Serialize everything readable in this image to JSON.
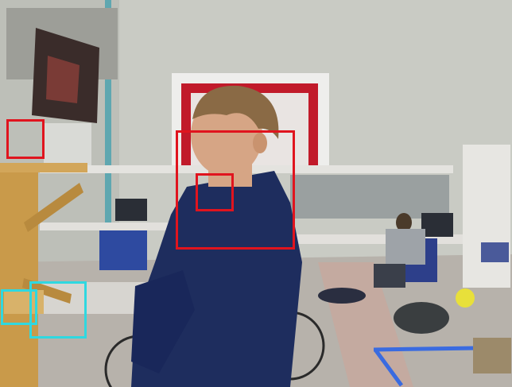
{
  "scene": {
    "description_icon": "lab-scene-photo",
    "colors": {
      "wall": "#c9cbc4",
      "floor": "#b9b4ae",
      "hoodie": "#1e2d5e",
      "hair": "#8a6a45",
      "skin": "#d6a585",
      "window_frame": "#c11a2a",
      "bench": "#e2e0dc",
      "wood": "#c99a4a",
      "tape": "#3a6be0"
    }
  },
  "detections": {
    "red_color": "#e0141e",
    "cyan_color": "#2fd8e0",
    "red_count": 3,
    "cyan_count": 2
  }
}
